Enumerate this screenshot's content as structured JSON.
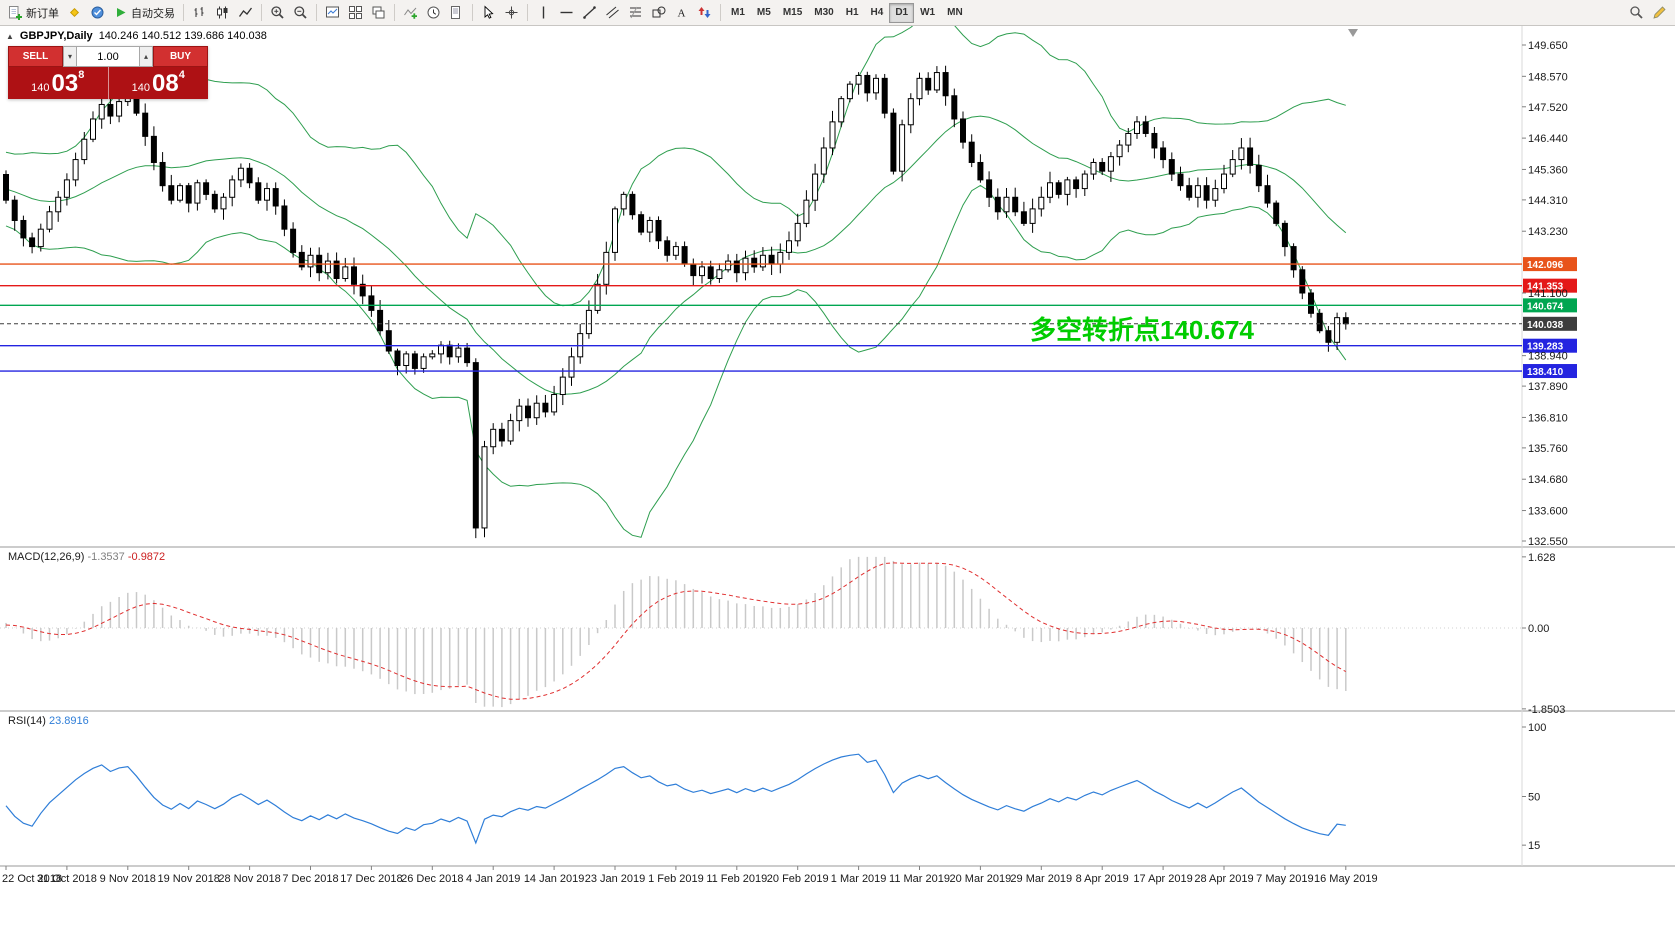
{
  "toolbar": {
    "groups": [
      {
        "items": [
          {
            "name": "new-order-button",
            "icon": "new-order-icon",
            "label": "新订单"
          },
          {
            "name": "metaeditor-button",
            "icon": "metaeditor-icon"
          },
          {
            "name": "market-watch-button",
            "icon": "market-watch-icon"
          },
          {
            "name": "autotrade-button",
            "icon": "autotrade-icon",
            "label": "自动交易"
          }
        ]
      },
      {
        "items": [
          {
            "name": "bar-chart-button",
            "icon": "bar-chart-icon"
          },
          {
            "name": "candlestick-button",
            "icon": "candlestick-icon"
          },
          {
            "name": "line-chart-button",
            "icon": "line-chart-icon"
          }
        ]
      },
      {
        "items": [
          {
            "name": "zoom-in-button",
            "icon": "zoom-in-icon"
          },
          {
            "name": "zoom-out-button",
            "icon": "zoom-out-icon"
          }
        ]
      },
      {
        "items": [
          {
            "name": "new-chart-button",
            "icon": "new-chart-icon"
          },
          {
            "name": "tile-windows-button",
            "icon": "tile-windows-icon"
          },
          {
            "name": "cascade-windows-button",
            "icon": "cascade-windows-icon"
          }
        ]
      },
      {
        "items": [
          {
            "name": "indicators-button",
            "icon": "indicators-icon"
          },
          {
            "name": "periods-button",
            "icon": "periods-icon"
          },
          {
            "name": "templates-button",
            "icon": "templates-icon"
          }
        ]
      },
      {
        "items": [
          {
            "name": "cursor-button",
            "icon": "cursor-icon"
          },
          {
            "name": "crosshair-button",
            "icon": "crosshair-icon"
          }
        ]
      },
      {
        "items": [
          {
            "name": "vertical-line-button",
            "icon": "vertical-line-icon"
          },
          {
            "name": "horizontal-line-button",
            "icon": "horizontal-line-icon"
          },
          {
            "name": "trendline-button",
            "icon": "trendline-icon"
          },
          {
            "name": "channel-button",
            "icon": "channel-icon"
          },
          {
            "name": "fibonacci-button",
            "icon": "fibonacci-icon"
          },
          {
            "name": "shapes-button",
            "icon": "shapes-icon"
          },
          {
            "name": "text-button",
            "icon": "text-icon"
          },
          {
            "name": "arrows-button",
            "icon": "arrows-icon"
          }
        ]
      }
    ],
    "timeframes": [
      "M1",
      "M5",
      "M15",
      "M30",
      "H1",
      "H4",
      "D1",
      "W1",
      "MN"
    ],
    "active_timeframe": "D1",
    "right_items": [
      {
        "name": "search-button",
        "icon": "search-icon"
      },
      {
        "name": "edit-button",
        "icon": "edit-icon"
      }
    ]
  },
  "symbol_info": {
    "title": "GBPJPY,Daily",
    "ohlc": "140.246 140.512 139.686 140.038"
  },
  "one_click": {
    "sell_label": "SELL",
    "buy_label": "BUY",
    "volume": "1.00",
    "sell_price": {
      "prefix": "140",
      "big": "03",
      "sup": "8"
    },
    "buy_price": {
      "prefix": "140",
      "big": "08",
      "sup": "4"
    }
  },
  "annotation": {
    "text": "多空转折点140.674",
    "color": "#00cc00"
  },
  "price_axis_ticks": [
    "149.650",
    "148.570",
    "147.520",
    "146.440",
    "145.360",
    "144.310",
    "143.230",
    "141.100",
    "138.940",
    "137.890",
    "136.810",
    "135.760",
    "134.680",
    "133.600",
    "132.550"
  ],
  "price_lines": [
    {
      "value": 142.096,
      "label": "142.096",
      "color": "#e8531a",
      "style": "solid"
    },
    {
      "value": 141.353,
      "label": "141.353",
      "color": "#e41919",
      "style": "solid"
    },
    {
      "value": 140.674,
      "label": "140.674",
      "color": "#00a651",
      "style": "solid"
    },
    {
      "value": 140.038,
      "label": "140.038",
      "color": "#3d3d3d",
      "style": "dashed",
      "role": "bid"
    },
    {
      "value": 139.283,
      "label": "139.283",
      "color": "#2424e0",
      "style": "solid"
    },
    {
      "value": 138.41,
      "label": "138.410",
      "color": "#2424e0",
      "style": "solid"
    }
  ],
  "panes": {
    "macd": {
      "label": "MACD(12,26,9)",
      "value_main": "-1.3537",
      "value_signal": "-0.9872",
      "axis": [
        "1.628",
        "0.00",
        "-1.8503"
      ]
    },
    "rsi": {
      "label": "RSI(14)",
      "value": "23.8916",
      "axis": [
        "100",
        "50",
        "15"
      ]
    }
  },
  "chart_data": {
    "type": "candlestick",
    "symbol": "GBPJPY",
    "timeframe": "Daily",
    "title": "GBPJPY,Daily",
    "y_range": [
      132.55,
      149.65
    ],
    "ohlc_current": {
      "open": 140.246,
      "high": 140.512,
      "low": 139.686,
      "close": 140.038
    },
    "closes": [
      144.3,
      143.6,
      143.0,
      142.7,
      143.3,
      143.9,
      144.4,
      145.0,
      145.7,
      146.4,
      147.1,
      147.6,
      147.2,
      147.7,
      147.9,
      147.3,
      146.5,
      145.6,
      144.8,
      144.3,
      144.8,
      144.2,
      144.9,
      144.5,
      144.0,
      144.4,
      145.0,
      145.4,
      144.9,
      144.3,
      144.7,
      144.1,
      143.3,
      142.5,
      142.0,
      142.4,
      141.8,
      142.2,
      141.6,
      142.0,
      141.4,
      141.0,
      140.5,
      139.8,
      139.1,
      138.6,
      139.0,
      138.5,
      138.9,
      139.0,
      139.3,
      138.9,
      139.2,
      138.7,
      133.0,
      135.8,
      136.4,
      136.0,
      136.7,
      137.2,
      136.8,
      137.3,
      137.0,
      137.6,
      138.2,
      138.9,
      139.7,
      140.5,
      141.4,
      142.5,
      144.0,
      144.5,
      143.8,
      143.2,
      143.6,
      142.9,
      142.4,
      142.7,
      142.1,
      141.7,
      142.0,
      141.6,
      141.9,
      142.2,
      141.8,
      142.3,
      142.0,
      142.4,
      142.1,
      142.5,
      142.9,
      143.5,
      144.3,
      145.2,
      146.1,
      147.0,
      147.8,
      148.3,
      148.6,
      148.0,
      148.5,
      147.3,
      145.3,
      146.9,
      147.8,
      148.5,
      148.1,
      148.7,
      147.9,
      147.1,
      146.3,
      145.6,
      145.0,
      144.4,
      143.9,
      144.4,
      143.9,
      143.5,
      144.0,
      144.4,
      144.9,
      144.5,
      145.0,
      144.7,
      145.2,
      145.6,
      145.3,
      145.8,
      146.2,
      146.6,
      147.0,
      146.6,
      146.1,
      145.7,
      145.2,
      144.8,
      144.4,
      144.8,
      144.3,
      144.7,
      145.2,
      145.7,
      146.1,
      145.5,
      144.8,
      144.2,
      143.5,
      142.7,
      141.9,
      141.1,
      140.4,
      139.8,
      139.4,
      140.25,
      140.04
    ],
    "date_labels": [
      "22 Oct 2018",
      "31 Oct 2018",
      "9 Nov 2018",
      "19 Nov 2018",
      "28 Nov 2018",
      "7 Dec 2018",
      "17 Dec 2018",
      "26 Dec 2018",
      "4 Jan 2019",
      "14 Jan 2019",
      "23 Jan 2019",
      "1 Feb 2019",
      "11 Feb 2019",
      "20 Feb 2019",
      "1 Mar 2019",
      "11 Mar 2019",
      "20 Mar 2019",
      "29 Mar 2019",
      "8 Apr 2019",
      "17 Apr 2019",
      "28 Apr 2019",
      "7 May 2019",
      "16 May 2019"
    ],
    "indicators": {
      "bollinger": {
        "period": 20,
        "deviation": 2,
        "color": "#2e9e4f"
      },
      "macd": {
        "fast": 12,
        "slow": 26,
        "signal": 9,
        "histogram_color": "#c9c9c9",
        "signal_color": "#e03030",
        "current_main": -1.3537,
        "current_signal": -0.9872,
        "axis_ticks": [
          1.628,
          0.0,
          -1.8503
        ]
      },
      "rsi": {
        "period": 14,
        "color": "#2f7ed8",
        "current": 23.8916,
        "axis_ticks": [
          100,
          50,
          15
        ]
      }
    }
  }
}
